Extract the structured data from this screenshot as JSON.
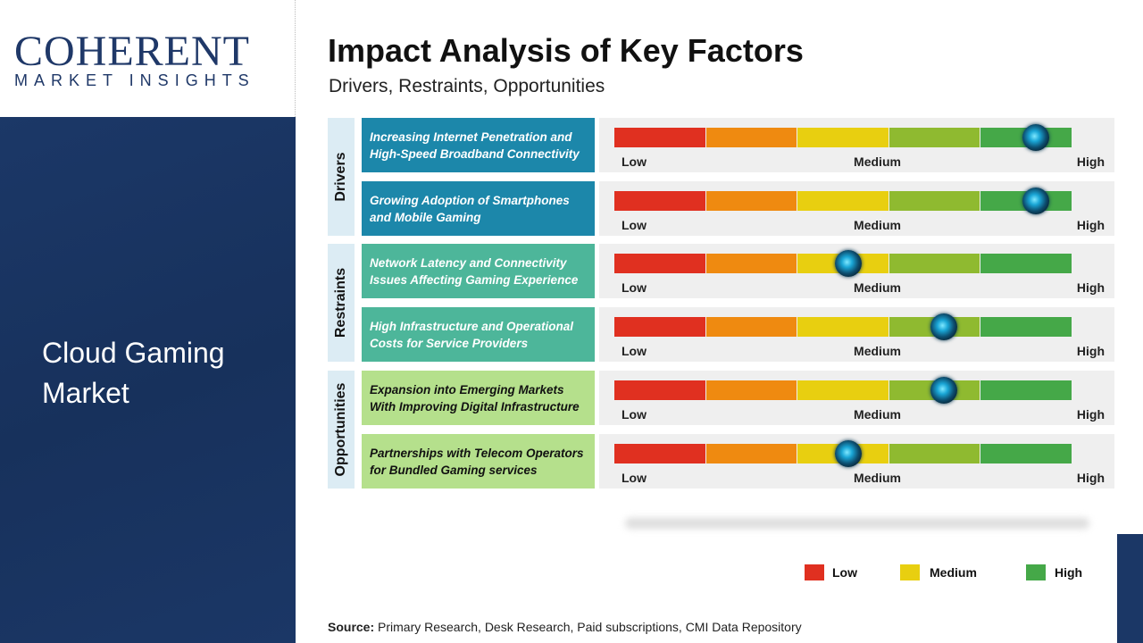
{
  "logo": {
    "line1": "COHERENT",
    "line2": "MARKET INSIGHTS"
  },
  "market_title": "Cloud Gaming Market",
  "title": "Impact Analysis of Key Factors",
  "subtitle": "Drivers, Restraints, Opportunities",
  "chart_data": {
    "type": "gauge-bar",
    "scale_labels": [
      "Low",
      "Medium",
      "High"
    ],
    "scale_range": [
      0,
      100
    ],
    "segment_colors": [
      "#e03020",
      "#ef8a10",
      "#e8cf10",
      "#8fba30",
      "#45a848"
    ],
    "categories": [
      {
        "name": "Drivers",
        "color": "#1c87aa",
        "text_color": "#ffffff",
        "factors": [
          {
            "label": "Increasing Internet Penetration and High-Speed Broadband Connectivity",
            "impact": 92
          },
          {
            "label": "Growing Adoption of Smartphones and Mobile Gaming",
            "impact": 92
          }
        ]
      },
      {
        "name": "Restraints",
        "color": "#4db69a",
        "text_color": "#ffffff",
        "factors": [
          {
            "label": "Network Latency and Connectivity Issues Affecting Gaming Experience",
            "impact": 51
          },
          {
            "label": "High Infrastructure and Operational Costs for Service Providers",
            "impact": 72
          }
        ]
      },
      {
        "name": "Opportunities",
        "color": "#b5e08c",
        "text_color": "#111111",
        "factors": [
          {
            "label": "Expansion into Emerging Markets With Improving Digital Infrastructure",
            "impact": 72
          },
          {
            "label": "Partnerships with Telecom Operators for Bundled Gaming services",
            "impact": 51
          }
        ]
      }
    ],
    "legend": [
      {
        "label": "Low",
        "color": "#e03020"
      },
      {
        "label": "Medium",
        "color": "#e8cf10"
      },
      {
        "label": "High",
        "color": "#45a848"
      }
    ],
    "legend_placement": "bottom-right"
  },
  "source": {
    "label": "Source:",
    "text": " Primary Research, Desk Research, Paid subscriptions, CMI Data Repository"
  }
}
